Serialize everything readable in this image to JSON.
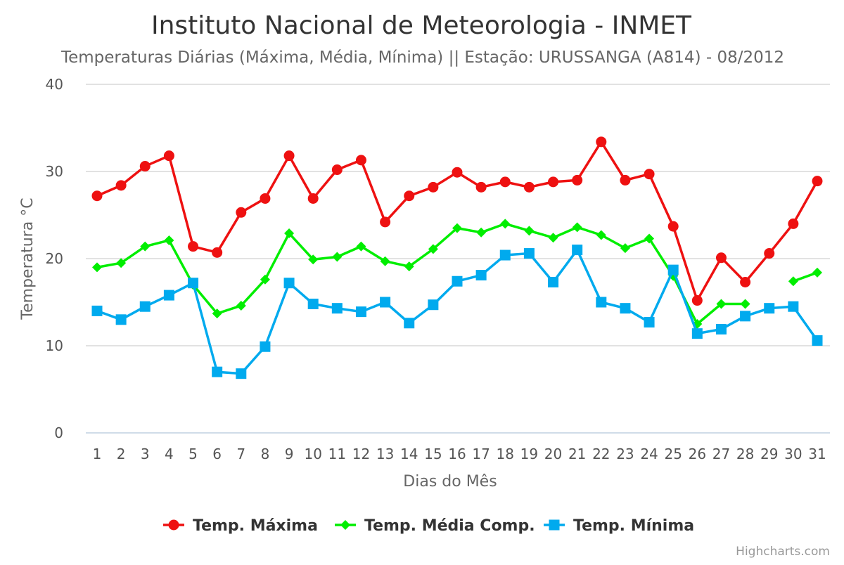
{
  "chart_data": {
    "type": "line",
    "title": "Instituto Nacional de Meteorologia - INMET",
    "subtitle": "Temperaturas Diárias (Máxima, Média, Mínima) || Estação: URUSSANGA (A814) - 08/2012",
    "xlabel": "Dias do Mês",
    "ylabel": "Temperatura °C",
    "categories": [
      "1",
      "2",
      "3",
      "4",
      "5",
      "6",
      "7",
      "8",
      "9",
      "10",
      "11",
      "12",
      "13",
      "14",
      "15",
      "16",
      "17",
      "18",
      "19",
      "20",
      "21",
      "22",
      "23",
      "24",
      "25",
      "26",
      "27",
      "28",
      "29",
      "30",
      "31"
    ],
    "yticks": [
      "0",
      "10",
      "20",
      "30",
      "40"
    ],
    "ylim": [
      0,
      40
    ],
    "grid": true,
    "legend_position": "bottom",
    "series": [
      {
        "name": "Temp. Máxima",
        "color": "#ee1111",
        "marker": "circle",
        "values": [
          27.2,
          28.4,
          30.6,
          31.8,
          21.4,
          20.7,
          25.3,
          26.9,
          31.8,
          26.9,
          30.2,
          31.3,
          24.2,
          27.2,
          28.2,
          29.9,
          28.2,
          28.8,
          28.2,
          28.8,
          29.0,
          33.4,
          29.0,
          29.7,
          23.7,
          15.2,
          20.1,
          17.3,
          20.6,
          24.0,
          28.9
        ]
      },
      {
        "name": "Temp. Média Comp.",
        "color": "#00ee00",
        "marker": "diamond",
        "values": [
          19.0,
          19.5,
          21.4,
          22.1,
          17.0,
          13.7,
          14.6,
          17.6,
          22.9,
          19.9,
          20.2,
          21.4,
          19.7,
          19.1,
          21.1,
          23.5,
          23.0,
          24.0,
          23.2,
          22.4,
          23.6,
          22.7,
          21.2,
          22.3,
          18.0,
          12.5,
          14.8,
          14.8,
          null,
          17.4,
          18.4
        ]
      },
      {
        "name": "Temp. Mínima",
        "color": "#00aaee",
        "marker": "square",
        "values": [
          14.0,
          13.0,
          14.5,
          15.8,
          17.2,
          7.0,
          6.8,
          9.9,
          17.2,
          14.8,
          14.3,
          13.9,
          15.0,
          12.6,
          14.7,
          17.4,
          18.1,
          20.4,
          20.6,
          17.3,
          21.0,
          15.0,
          14.3,
          12.7,
          18.7,
          11.4,
          11.9,
          13.4,
          14.3,
          14.5,
          10.6
        ]
      }
    ],
    "credits": "Highcharts.com"
  }
}
